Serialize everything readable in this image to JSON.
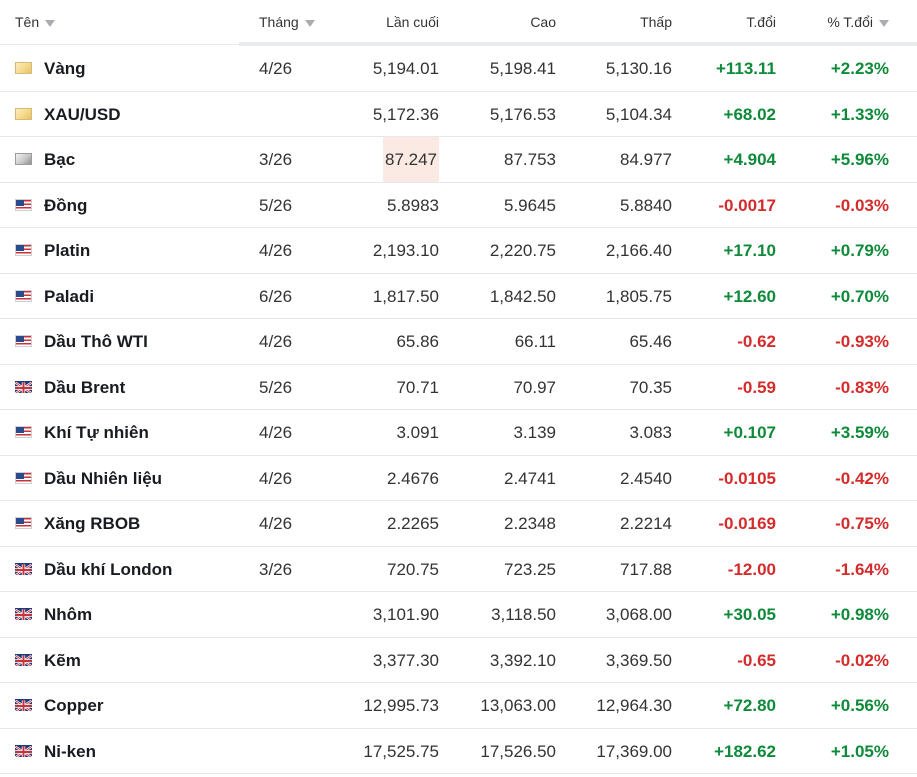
{
  "header": {
    "name": "Tên",
    "month": "Tháng",
    "last": "Lần cuối",
    "high": "Cao",
    "low": "Thấp",
    "change": "T.đổi",
    "change_pct": "% T.đổi"
  },
  "colors": {
    "positive": "#0f8a3a",
    "negative": "#d42b2b",
    "highlight": "#fbe9e3"
  },
  "rows": [
    {
      "icon": "gold-icon",
      "name": "Vàng",
      "month": "4/26",
      "last": "5,194.01",
      "high": "5,198.41",
      "low": "5,130.16",
      "change": "+113.11",
      "change_pct": "+2.23%"
    },
    {
      "icon": "gold-icon",
      "name": "XAU/USD",
      "month": "",
      "last": "5,172.36",
      "high": "5,176.53",
      "low": "5,104.34",
      "change": "+68.02",
      "change_pct": "+1.33%"
    },
    {
      "icon": "silver-icon",
      "name": "Bạc",
      "month": "3/26",
      "last": "87.247",
      "high": "87.753",
      "low": "84.977",
      "change": "+4.904",
      "change_pct": "+5.96%"
    },
    {
      "icon": "us-flag-icon",
      "name": "Đồng",
      "month": "5/26",
      "last": "5.8983",
      "high": "5.9645",
      "low": "5.8840",
      "change": "-0.0017",
      "change_pct": "-0.03%"
    },
    {
      "icon": "us-flag-icon",
      "name": "Platin",
      "month": "4/26",
      "last": "2,193.10",
      "high": "2,220.75",
      "low": "2,166.40",
      "change": "+17.10",
      "change_pct": "+0.79%"
    },
    {
      "icon": "us-flag-icon",
      "name": "Paladi",
      "month": "6/26",
      "last": "1,817.50",
      "high": "1,842.50",
      "low": "1,805.75",
      "change": "+12.60",
      "change_pct": "+0.70%"
    },
    {
      "icon": "us-flag-icon",
      "name": "Dầu Thô WTI",
      "month": "4/26",
      "last": "65.86",
      "high": "66.11",
      "low": "65.46",
      "change": "-0.62",
      "change_pct": "-0.93%"
    },
    {
      "icon": "uk-flag-icon",
      "name": "Dầu Brent",
      "month": "5/26",
      "last": "70.71",
      "high": "70.97",
      "low": "70.35",
      "change": "-0.59",
      "change_pct": "-0.83%"
    },
    {
      "icon": "us-flag-icon",
      "name": "Khí Tự nhiên",
      "month": "4/26",
      "last": "3.091",
      "high": "3.139",
      "low": "3.083",
      "change": "+0.107",
      "change_pct": "+3.59%"
    },
    {
      "icon": "us-flag-icon",
      "name": "Dầu Nhiên liệu",
      "month": "4/26",
      "last": "2.4676",
      "high": "2.4741",
      "low": "2.4540",
      "change": "-0.0105",
      "change_pct": "-0.42%"
    },
    {
      "icon": "us-flag-icon",
      "name": "Xăng RBOB",
      "month": "4/26",
      "last": "2.2265",
      "high": "2.2348",
      "low": "2.2214",
      "change": "-0.0169",
      "change_pct": "-0.75%"
    },
    {
      "icon": "uk-flag-icon",
      "name": "Dầu khí London",
      "month": "3/26",
      "last": "720.75",
      "high": "723.25",
      "low": "717.88",
      "change": "-12.00",
      "change_pct": "-1.64%"
    },
    {
      "icon": "uk-flag-icon",
      "name": "Nhôm",
      "month": "",
      "last": "3,101.90",
      "high": "3,118.50",
      "low": "3,068.00",
      "change": "+30.05",
      "change_pct": "+0.98%"
    },
    {
      "icon": "uk-flag-icon",
      "name": "Kẽm",
      "month": "",
      "last": "3,377.30",
      "high": "3,392.10",
      "low": "3,369.50",
      "change": "-0.65",
      "change_pct": "-0.02%"
    },
    {
      "icon": "uk-flag-icon",
      "name": "Copper",
      "month": "",
      "last": "12,995.73",
      "high": "13,063.00",
      "low": "12,964.30",
      "change": "+72.80",
      "change_pct": "+0.56%"
    },
    {
      "icon": "uk-flag-icon",
      "name": "Ni-ken",
      "month": "",
      "last": "17,525.75",
      "high": "17,526.50",
      "low": "17,369.00",
      "change": "+182.62",
      "change_pct": "+1.05%"
    }
  ]
}
